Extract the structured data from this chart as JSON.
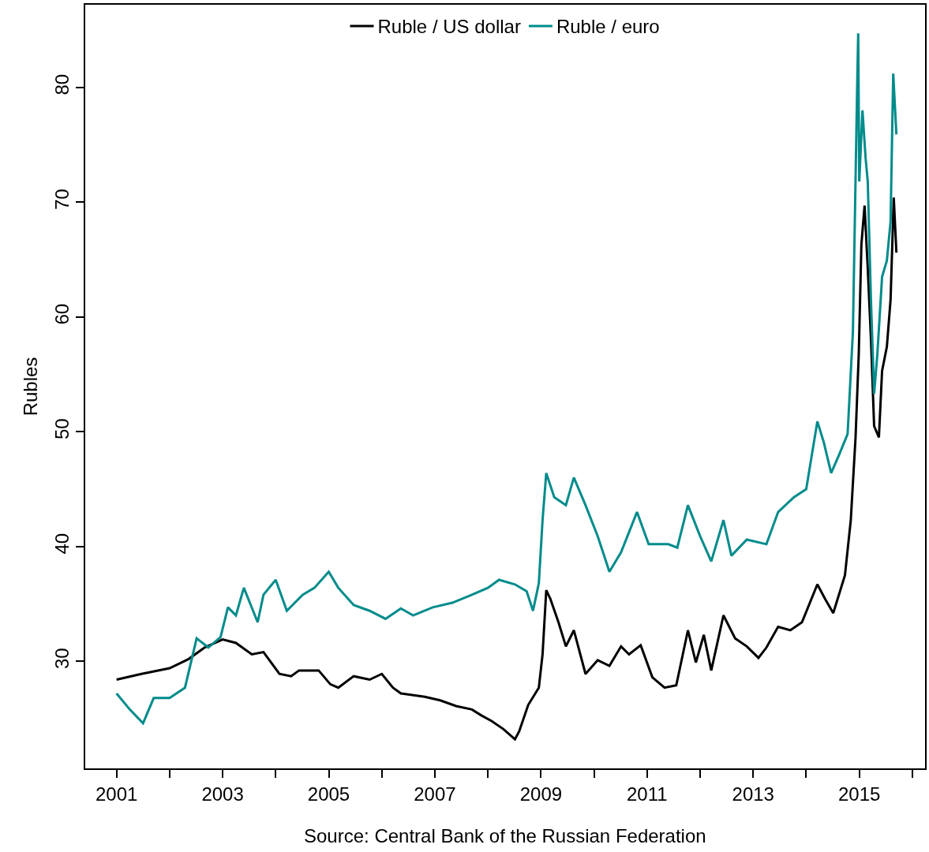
{
  "chart_data": {
    "type": "line",
    "ylabel": "Rubles",
    "annotations": [
      "Source: Central Bank of the Russian Federation"
    ],
    "xlim": [
      2000.41,
      2016.24
    ],
    "ylim": [
      20.67,
      87.2
    ],
    "xticks": [
      2001,
      {
        "value": 2002,
        "label": null
      },
      2003,
      {
        "value": 2004,
        "label": null
      },
      2005,
      {
        "value": 2006,
        "label": null
      },
      2007,
      {
        "value": 2008,
        "label": null
      },
      2009,
      {
        "value": 2010,
        "label": null
      },
      2011,
      {
        "value": 2012,
        "label": null
      },
      2013,
      {
        "value": 2014,
        "label": null
      },
      2015,
      {
        "value": 2016,
        "label": null
      }
    ],
    "yticks": [
      30,
      40,
      50,
      60,
      70,
      80
    ],
    "legend": "top",
    "marker": "none",
    "line_style": "solid",
    "series": [
      {
        "name": "Ruble / US dollar",
        "color": "#000000",
        "x": [
          2001.0,
          2001.47,
          2002.0,
          2002.36,
          2002.66,
          2003.0,
          2003.25,
          2003.55,
          2003.77,
          2004.07,
          2004.29,
          2004.44,
          2004.81,
          2005.03,
          2005.18,
          2005.47,
          2005.77,
          2006.0,
          2006.21,
          2006.36,
          2006.81,
          2007.1,
          2007.4,
          2007.7,
          2007.87,
          2008.07,
          2008.29,
          2008.51,
          2008.59,
          2008.76,
          2008.96,
          2009.03,
          2009.1,
          2009.18,
          2009.33,
          2009.47,
          2009.62,
          2009.84,
          2010.07,
          2010.29,
          2010.51,
          2010.66,
          2010.88,
          2011.1,
          2011.33,
          2011.55,
          2011.77,
          2011.92,
          2012.07,
          2012.21,
          2012.44,
          2012.66,
          2012.88,
          2013.1,
          2013.25,
          2013.47,
          2013.7,
          2013.92,
          2014.21,
          2014.36,
          2014.51,
          2014.73,
          2014.84,
          2014.93,
          2014.99,
          2015.04,
          2015.1,
          2015.16,
          2015.22,
          2015.28,
          2015.37,
          2015.43,
          2015.52,
          2015.59,
          2015.65,
          2015.7
        ],
        "values": [
          28.4,
          28.9,
          29.4,
          30.2,
          31.2,
          31.9,
          31.6,
          30.6,
          30.8,
          28.9,
          28.7,
          29.2,
          29.2,
          28.0,
          27.7,
          28.7,
          28.4,
          28.9,
          27.7,
          27.2,
          26.9,
          26.6,
          26.1,
          25.8,
          25.3,
          24.8,
          24.1,
          23.2,
          23.9,
          26.2,
          27.7,
          30.6,
          36.2,
          35.4,
          33.4,
          31.3,
          32.7,
          28.9,
          30.1,
          29.6,
          31.3,
          30.6,
          31.4,
          28.6,
          27.7,
          27.9,
          32.7,
          29.9,
          32.3,
          29.2,
          34.0,
          32.0,
          31.3,
          30.3,
          31.2,
          33.0,
          32.7,
          33.4,
          36.7,
          35.4,
          34.2,
          37.5,
          42.3,
          49.5,
          56.7,
          66.3,
          69.7,
          64.2,
          58.1,
          50.5,
          49.5,
          55.3,
          57.4,
          61.5,
          70.4,
          65.6
        ]
      },
      {
        "name": "Ruble / euro",
        "color": "#008b8b",
        "x": [
          2001.0,
          2001.25,
          2001.5,
          2001.7,
          2002.0,
          2002.29,
          2002.51,
          2002.73,
          2002.96,
          2003.1,
          2003.25,
          2003.4,
          2003.66,
          2003.77,
          2004.0,
          2004.21,
          2004.51,
          2004.73,
          2005.0,
          2005.18,
          2005.47,
          2005.77,
          2006.07,
          2006.36,
          2006.59,
          2006.96,
          2007.33,
          2007.7,
          2008.0,
          2008.21,
          2008.51,
          2008.73,
          2008.85,
          2008.96,
          2009.03,
          2009.1,
          2009.25,
          2009.47,
          2009.62,
          2009.84,
          2010.07,
          2010.29,
          2010.51,
          2010.81,
          2011.03,
          2011.4,
          2011.57,
          2011.77,
          2012.0,
          2012.21,
          2012.44,
          2012.59,
          2012.88,
          2013.25,
          2013.47,
          2013.77,
          2014.0,
          2014.21,
          2014.33,
          2014.47,
          2014.63,
          2014.78,
          2014.88,
          2014.96,
          2014.98,
          2015.0,
          2015.06,
          2015.12,
          2015.16,
          2015.22,
          2015.28,
          2015.34,
          2015.43,
          2015.52,
          2015.59,
          2015.64,
          2015.7
        ],
        "values": [
          27.2,
          25.8,
          24.6,
          26.8,
          26.8,
          27.7,
          32.0,
          31.2,
          32.1,
          34.7,
          34.0,
          36.4,
          33.4,
          35.8,
          37.1,
          34.4,
          35.8,
          36.4,
          37.8,
          36.4,
          34.9,
          34.4,
          33.7,
          34.6,
          34.0,
          34.7,
          35.1,
          35.8,
          36.4,
          37.1,
          36.7,
          36.1,
          34.4,
          36.8,
          42.3,
          46.4,
          44.3,
          43.6,
          46.0,
          43.6,
          40.9,
          37.8,
          39.5,
          43.0,
          40.2,
          40.2,
          39.9,
          43.6,
          40.9,
          38.7,
          42.3,
          39.2,
          40.6,
          40.2,
          43.0,
          44.3,
          45.0,
          50.9,
          49.1,
          46.4,
          48.1,
          49.8,
          58.7,
          80.0,
          84.7,
          71.8,
          78.0,
          73.8,
          71.8,
          61.5,
          53.3,
          56.7,
          63.5,
          64.9,
          68.3,
          81.2,
          75.9
        ]
      }
    ]
  }
}
